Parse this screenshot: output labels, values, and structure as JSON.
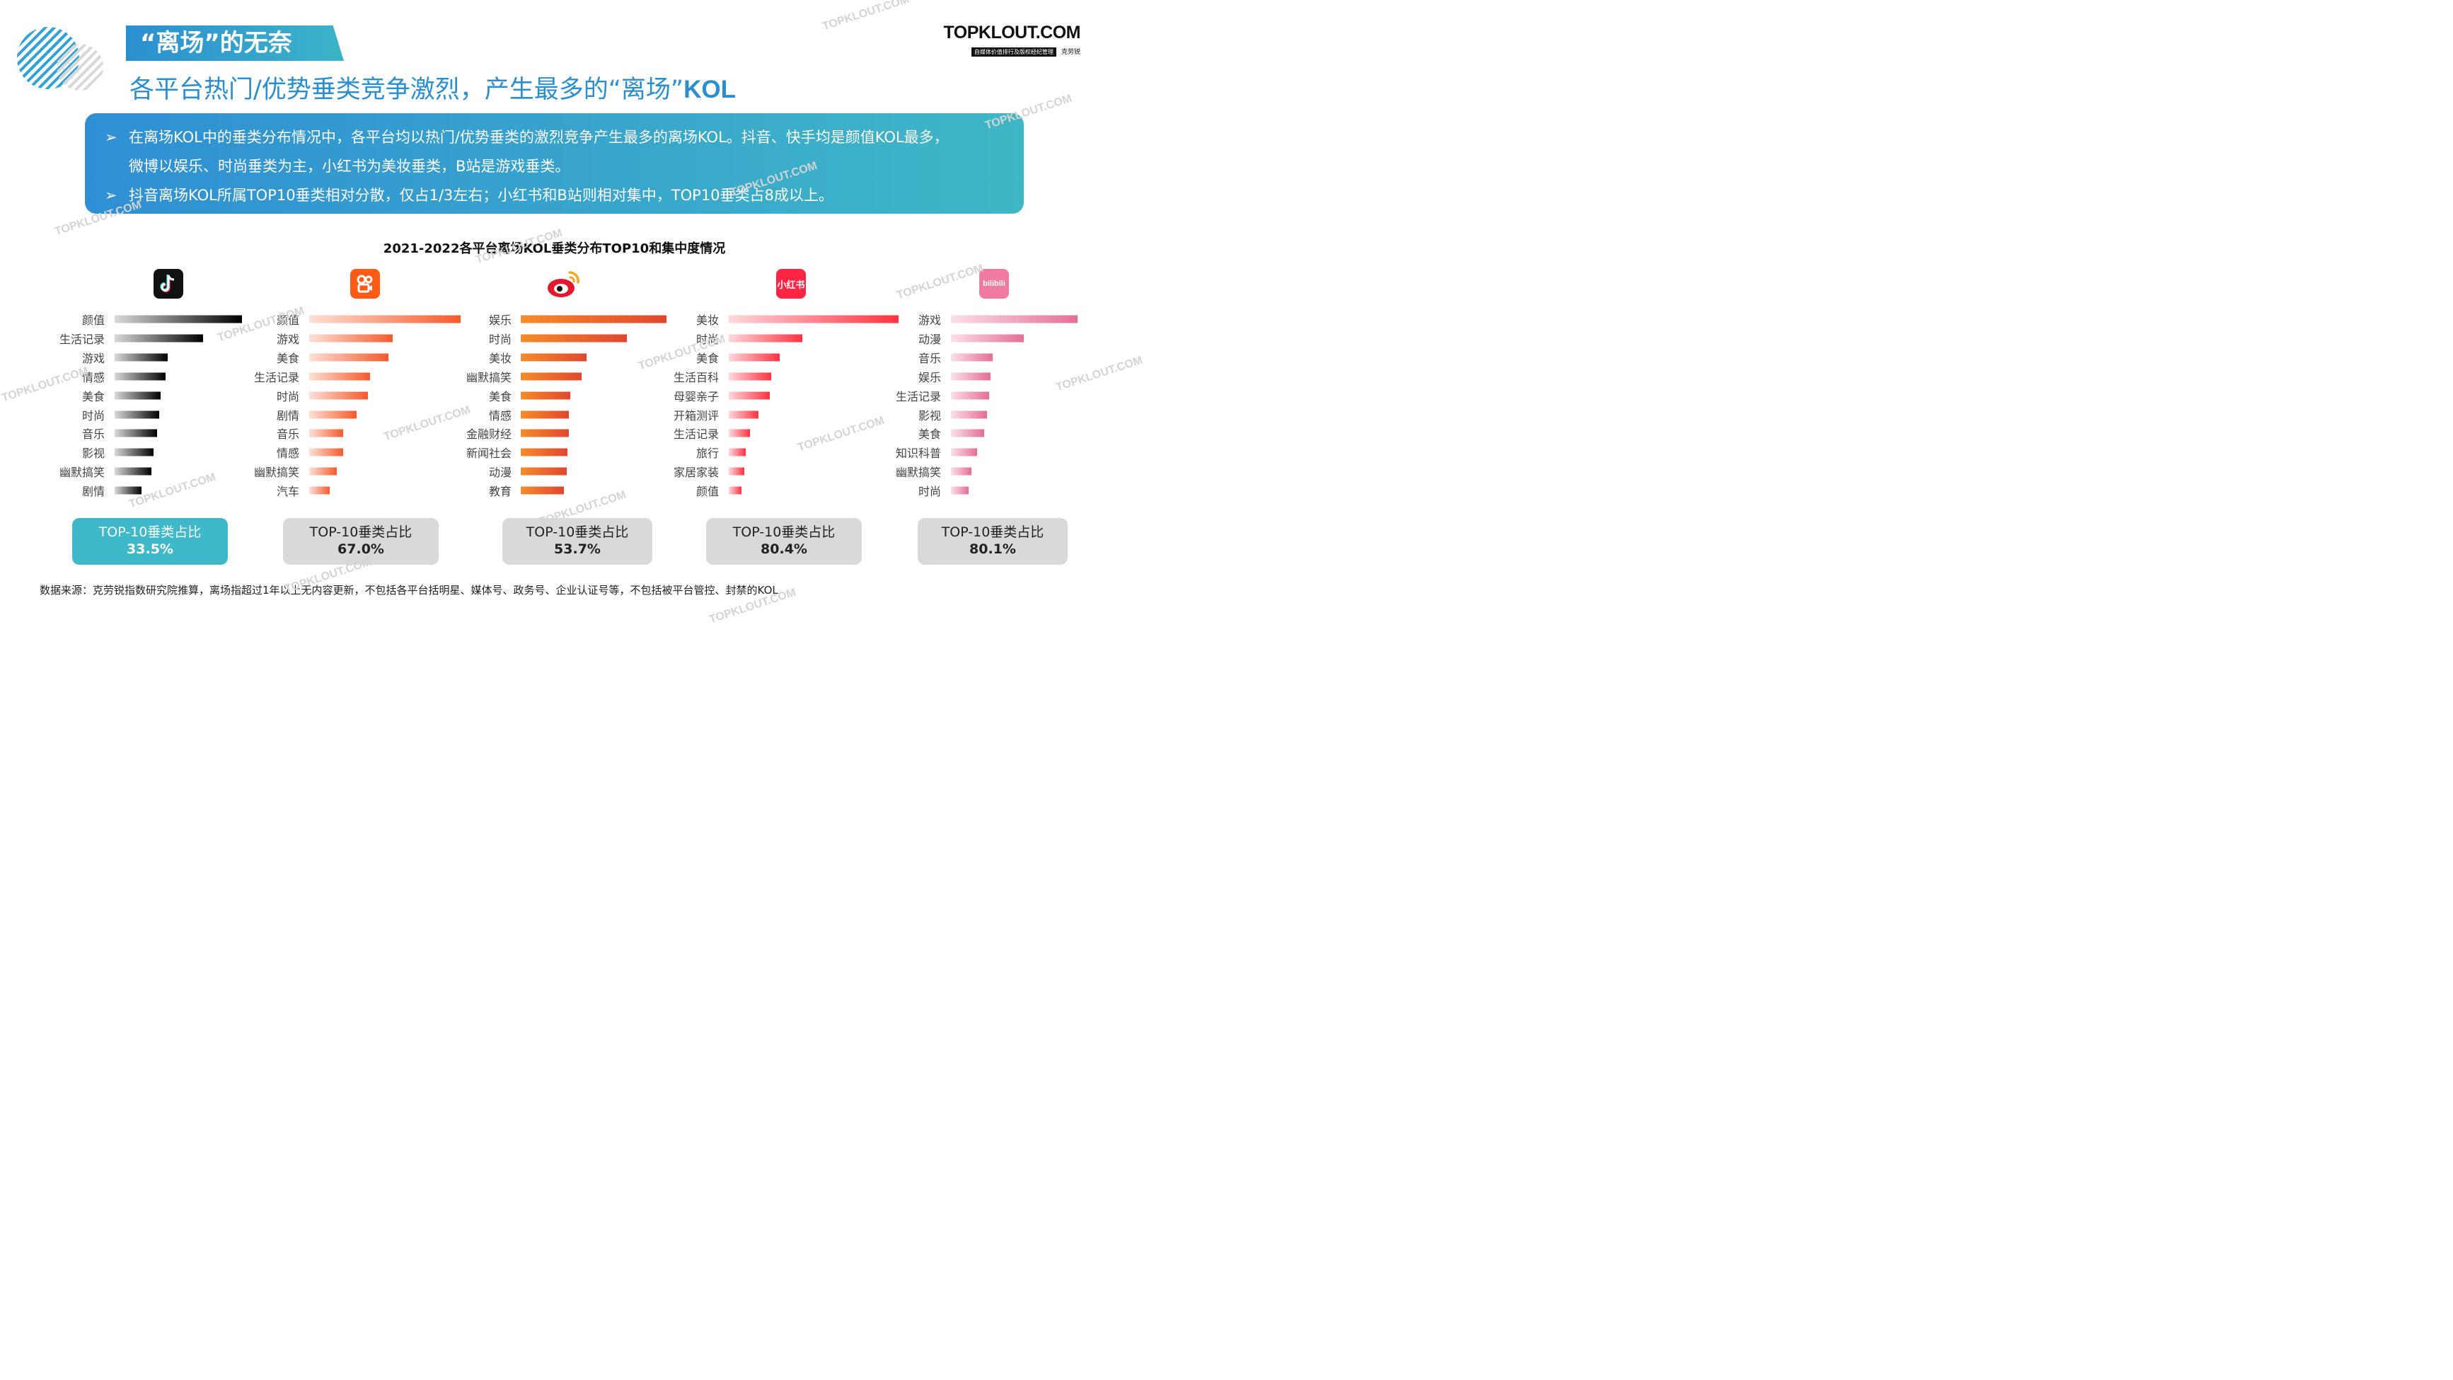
{
  "header": {
    "tab_title": "“离场”的无奈",
    "subtitle_text": "各平台热门/优势垂类竞争激烈，产生最多的“离场”",
    "subtitle_kol": "KOL",
    "brand_name": "TOPKLOUT.COM",
    "brand_tagline": "自媒体价值排行及版权经纪管理",
    "brand_cn": "克劳锐"
  },
  "summary": {
    "bullet_1a": "在离场KOL中的垂类分布情况中，各平台均以热门/优势垂类的激烈竞争产生最多的离场KOL。抖音、快手均是颜值KOL最多，",
    "bullet_1b": "微博以娱乐、时尚垂类为主，小红书为美妆垂类，B站是游戏垂类。",
    "bullet_2": "抖音离场KOL所属TOP10垂类相对分散，仅占1/3左右；小红书和B站则相对集中，TOP10垂类占8成以上。"
  },
  "watermark": "TOPKLOUT.COM",
  "logos": {
    "kuaishou_icon": "kuaishou-icon",
    "weibo_icon": "weibo-icon",
    "xiaohongshu_text": "小红书",
    "bilibili_text": "bilibili"
  },
  "footnote": "数据来源：克劳锐指数研究院推算，离场指超过1年以上无内容更新，不包括各平台括明星、媒体号、政务号、企业认证号等，不包括被平台管控、封禁的KOL",
  "chart_data": {
    "title": "2021-2022各平台离场KOL垂类分布TOP10和集中度情况",
    "type": "bar",
    "box_label": "TOP-10垂类占比",
    "panels": [
      {
        "platform": "抖音",
        "icon": "douyin-icon",
        "colors": [
          "#d9d9d9",
          "#000000"
        ],
        "categories": [
          "颜值",
          "生活记录",
          "游戏",
          "情感",
          "美食",
          "时尚",
          "音乐",
          "影视",
          "幽默搞笑",
          "剧情"
        ],
        "values": [
          18.0,
          12.5,
          7.5,
          7.2,
          6.5,
          6.3,
          6.0,
          5.5,
          5.2,
          3.8
        ],
        "top10_share": "33.5%"
      },
      {
        "platform": "快手",
        "icon": "kuaishou-icon",
        "colors": [
          "#fde0d6",
          "#f55a2c"
        ],
        "categories": [
          "颜值",
          "游戏",
          "美食",
          "生活记录",
          "时尚",
          "剧情",
          "音乐",
          "情感",
          "幽默搞笑",
          "汽车"
        ],
        "values": [
          20.0,
          11.0,
          10.5,
          8.0,
          7.8,
          6.3,
          4.5,
          4.5,
          3.6,
          2.7
        ],
        "top10_share": "67.0%"
      },
      {
        "platform": "微博",
        "icon": "weibo-icon",
        "colors": [
          "#f58c2a",
          "#e2462e"
        ],
        "categories": [
          "娱乐",
          "时尚",
          "美妆",
          "幽默搞笑",
          "美食",
          "情感",
          "金融财经",
          "新闻社会",
          "动漫",
          "教育"
        ],
        "values": [
          21.0,
          15.3,
          9.5,
          8.8,
          7.1,
          6.9,
          6.9,
          6.7,
          6.6,
          6.2
        ],
        "top10_share": "53.7%"
      },
      {
        "platform": "小红书",
        "icon": "xiaohongshu-icon",
        "colors": [
          "#ffd8dc",
          "#ff3140"
        ],
        "categories": [
          "美妆",
          "时尚",
          "美食",
          "生活百科",
          "母婴亲子",
          "开箱测评",
          "生活记录",
          "旅行",
          "家居家装",
          "颜值"
        ],
        "values": [
          30.0,
          13.0,
          9.0,
          7.5,
          7.2,
          5.2,
          3.8,
          3.0,
          2.8,
          2.3
        ],
        "top10_share": "80.4%"
      },
      {
        "platform": "B站",
        "icon": "bilibili-icon",
        "colors": [
          "#fbe0e8",
          "#e56d97"
        ],
        "categories": [
          "游戏",
          "动漫",
          "音乐",
          "娱乐",
          "生活记录",
          "影视",
          "美食",
          "知识科普",
          "幽默搞笑",
          "时尚"
        ],
        "values": [
          36.5,
          21.0,
          12.0,
          11.5,
          11.0,
          10.5,
          9.5,
          7.5,
          6.0,
          5.0
        ],
        "top10_share": "80.1%"
      }
    ]
  }
}
